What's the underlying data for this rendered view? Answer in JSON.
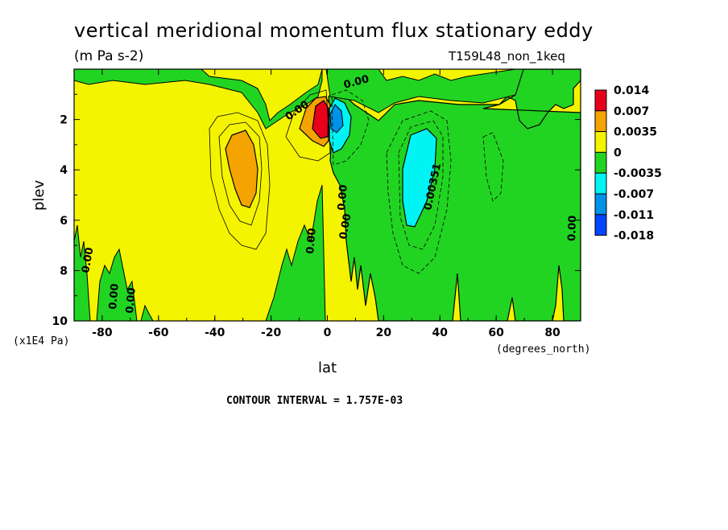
{
  "chart_data": {
    "type": "contour",
    "title": "vertical meridional momentum flux stationary eddy",
    "units": "(m Pa s-2)",
    "run_label": "T159L48_non_1keq",
    "xlabel": "lat",
    "x_units": "(degrees_north)",
    "ylabel": "plev",
    "y_units": "(x1E4 Pa)",
    "xlim": [
      -90,
      90
    ],
    "ylim": [
      10,
      0
    ],
    "x_ticks": [
      "-80",
      "-60",
      "-40",
      "-20",
      "0",
      "20",
      "40",
      "60",
      "80"
    ],
    "y_ticks": [
      "2",
      "4",
      "6",
      "8",
      "10"
    ],
    "contour_interval_text": "CONTOUR INTERVAL = 1.757E-03",
    "legend": {
      "labels": [
        "0.014",
        "0.007",
        "0.0035",
        "0",
        "-0.0035",
        "-0.007",
        "-0.011",
        "-0.018"
      ],
      "colors": [
        "#e8001b",
        "#f5a300",
        "#f4f400",
        "#22d422",
        "#00f4f4",
        "#0091e8",
        "#0045ff"
      ]
    },
    "contour_labels": [
      "0.00",
      "0.00",
      "0.00",
      "0.00",
      "0.00",
      "0.00",
      "0.00",
      "0.00351",
      "0.00",
      "0.00"
    ],
    "features": [
      {
        "lat": -3,
        "plev": 2.0,
        "level": "0.007 to 0.014",
        "color": "#e8001b"
      },
      {
        "lat": -32,
        "plev": 3.8,
        "level": "0.0035 to 0.007",
        "color": "#f5a300"
      },
      {
        "lat": 3,
        "plev": 2.0,
        "level": "-0.007 to -0.0035",
        "color": "#00f4f4"
      },
      {
        "lat": 33,
        "plev": 3.8,
        "level": "-0.007 to -0.0035",
        "color": "#00f4f4"
      }
    ]
  }
}
